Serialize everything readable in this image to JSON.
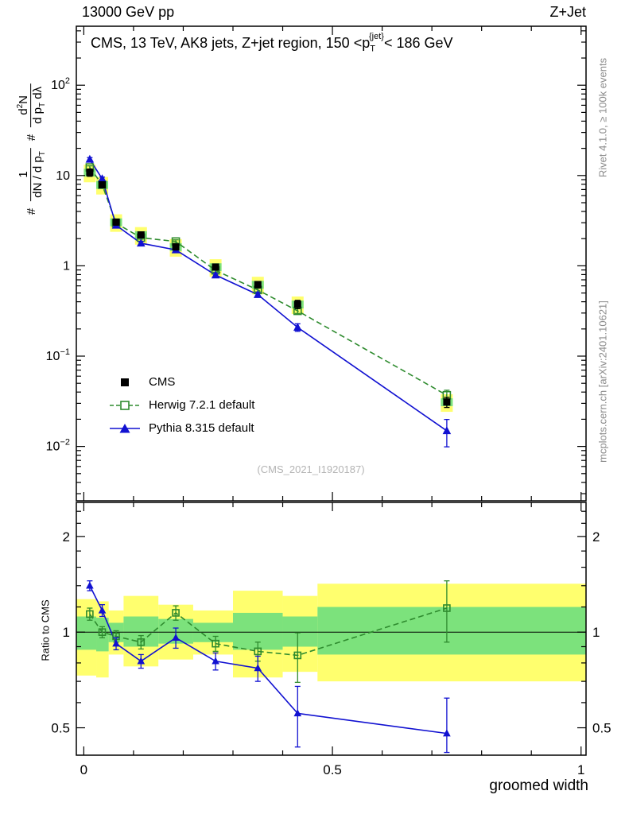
{
  "header": {
    "left": "13000 GeV pp",
    "right": "Z+Jet"
  },
  "side_notes": {
    "top_right": "Rivet 4.1.0, ≥ 100k events",
    "bottom_right": "mcplots.cern.ch [arXiv:2401.10621]"
  },
  "panel_title": {
    "prefix": "CMS, 13 TeV, AK8 jets, Z+jet region, 150 <p",
    "sub": "T",
    "sup": "{jet}",
    "suffix": "< 186 GeV"
  },
  "watermark": "(CMS_2021_I1920187)",
  "y_axis_label": {
    "hash1": "#",
    "num1": "1",
    "den1a": "dN / d p",
    "den1b": "T",
    "hash2": "#",
    "num2a": "d",
    "num2exp": "2",
    "num2b": "N",
    "den2a": "d p",
    "den2b": "T",
    "den2c": " dλ"
  },
  "ratio_axis_label": "Ratio to CMS",
  "x_axis_label": "groomed width",
  "legend": [
    {
      "label": "CMS",
      "marker": "filled-square",
      "color": "#000000",
      "line": "none"
    },
    {
      "label": "Herwig 7.2.1 default",
      "marker": "open-square",
      "color": "#2e8b2e",
      "line": "dashed"
    },
    {
      "label": "Pythia 8.315 default",
      "marker": "filled-triangle",
      "color": "#1111d1",
      "line": "solid"
    }
  ],
  "colors": {
    "yellow_band": "#ffff6e",
    "green_band": "#7ce27c",
    "frame": "#000000",
    "watermark": "#b4b4b4",
    "side_note": "#8c8c8c"
  },
  "chart_data": {
    "type": "line",
    "title": "CMS, 13 TeV, AK8 jets, Z+jet region, 150 <p_T^{jet}< 186 GeV",
    "xlabel": "groomed width",
    "ylabel": "# 1/(dN/dp_T) # d²N/(dp_T dλ)",
    "ylabel_ratio": "Ratio to CMS",
    "x": [
      0.012,
      0.037,
      0.065,
      0.115,
      0.185,
      0.265,
      0.35,
      0.43,
      0.73
    ],
    "series": [
      {
        "name": "CMS",
        "marker": "filled-square",
        "color": "#000000",
        "line": "none",
        "values": [
          10.8,
          7.9,
          3.05,
          2.2,
          1.62,
          0.97,
          0.62,
          0.375,
          0.031
        ],
        "yerr": [
          1.0,
          0.6,
          0.22,
          0.16,
          0.12,
          0.07,
          0.05,
          0.04,
          0.004
        ]
      },
      {
        "name": "Herwig 7.2.1 default",
        "marker": "open-square",
        "color": "#2e8b2e",
        "line": "dashed",
        "values": [
          12.3,
          7.9,
          2.96,
          2.05,
          1.86,
          0.89,
          0.54,
          0.317,
          0.0369
        ],
        "yerr": [
          0.5,
          0.3,
          0.12,
          0.08,
          0.08,
          0.04,
          0.025,
          0.02,
          0.005
        ]
      },
      {
        "name": "Pythia 8.315 default",
        "marker": "filled-triangle",
        "color": "#1111d1",
        "line": "solid",
        "values": [
          15.1,
          9.2,
          2.81,
          1.78,
          1.5,
          0.79,
          0.48,
          0.208,
          0.0149
        ],
        "yerr": [
          0.7,
          0.4,
          0.12,
          0.08,
          0.07,
          0.035,
          0.025,
          0.02,
          0.005
        ]
      }
    ],
    "ratio_series": [
      {
        "name": "Herwig 7.2.1 default",
        "marker": "open-square",
        "color": "#2e8b2e",
        "line": "dashed",
        "values": [
          1.14,
          1.0,
          0.97,
          0.93,
          1.15,
          0.92,
          0.87,
          0.845,
          1.19
        ],
        "yerr": [
          0.05,
          0.04,
          0.04,
          0.045,
          0.06,
          0.05,
          0.06,
          0.15,
          0.26
        ]
      },
      {
        "name": "Pythia 8.315 default",
        "marker": "filled-triangle",
        "color": "#1111d1",
        "line": "solid",
        "values": [
          1.4,
          1.17,
          0.92,
          0.81,
          0.96,
          0.81,
          0.77,
          0.555,
          0.48
        ],
        "yerr": [
          0.05,
          0.05,
          0.04,
          0.04,
          0.07,
          0.05,
          0.07,
          0.12,
          0.14
        ]
      }
    ],
    "ratio_bands": {
      "edges": [
        0,
        0.025,
        0.05,
        0.08,
        0.15,
        0.22,
        0.3,
        0.4,
        0.47,
        1.0
      ],
      "yellow": [
        [
          0.73,
          1.27
        ],
        [
          0.72,
          1.25
        ],
        [
          0.85,
          1.17
        ],
        [
          0.78,
          1.3
        ],
        [
          0.82,
          1.22
        ],
        [
          0.85,
          1.17
        ],
        [
          0.72,
          1.35
        ],
        [
          0.75,
          1.3
        ],
        [
          0.7,
          1.42
        ]
      ],
      "green": [
        [
          0.88,
          1.12
        ],
        [
          0.87,
          1.11
        ],
        [
          0.93,
          1.07
        ],
        [
          0.9,
          1.12
        ],
        [
          0.92,
          1.1
        ],
        [
          0.93,
          1.07
        ],
        [
          0.88,
          1.15
        ],
        [
          0.9,
          1.12
        ],
        [
          0.85,
          1.2
        ]
      ]
    },
    "axes": {
      "xlim": [
        0,
        1
      ],
      "xlim_draw": [
        -0.015,
        1.01
      ],
      "ylim_main": [
        0.0025,
        450
      ],
      "ylim_ratio": [
        0.41,
        2.56
      ],
      "xticks": [
        {
          "v": 0,
          "label": "0"
        },
        {
          "v": 0.5,
          "label": "0.5"
        },
        {
          "v": 1,
          "label": "1"
        }
      ],
      "xminor_step": 0.1,
      "yticks_main": [
        {
          "v": 100,
          "base": "10",
          "exp": "2"
        },
        {
          "v": 10,
          "base": "10"
        },
        {
          "v": 1,
          "base": "1"
        },
        {
          "v": 0.1,
          "base": "10",
          "exp": "−1"
        },
        {
          "v": 0.01,
          "base": "10",
          "exp": "−2"
        }
      ],
      "yticks_ratio": [
        {
          "v": 0.5,
          "label": "0.5"
        },
        {
          "v": 1,
          "label": "1"
        },
        {
          "v": 2,
          "label": "2"
        }
      ],
      "yminor_ratio": [
        0.6,
        0.7,
        0.8,
        0.9,
        1.2,
        1.4,
        1.6,
        1.8,
        2.2,
        2.4
      ],
      "cms_point_band": {
        "yellow": 0.22,
        "green": 0.1
      }
    }
  }
}
